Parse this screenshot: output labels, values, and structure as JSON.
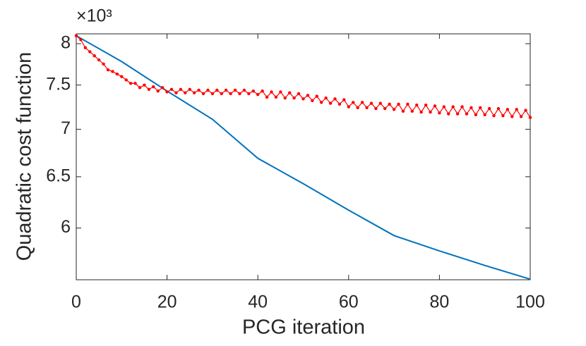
{
  "chart_data": {
    "type": "line",
    "x_label": "PCG iteration",
    "y_label": "Quadratic cost function",
    "y_multiplier": "×10³",
    "y_log_scale": true,
    "xlim": [
      0,
      100
    ],
    "xticks": [
      0,
      20,
      40,
      60,
      80,
      100
    ],
    "ylim": [
      5.535,
      8.124
    ],
    "yticks": [
      6,
      6.5,
      7,
      7.5,
      8
    ],
    "grid": false,
    "series": [
      {
        "color": "#0072bd",
        "marker": false,
        "x": [
          0,
          10,
          20,
          30,
          40,
          50,
          60,
          70,
          80,
          90,
          100
        ],
        "values": [
          8.1,
          7.78,
          7.43,
          7.11,
          6.69,
          6.43,
          6.17,
          5.93,
          5.79,
          5.66,
          5.54
        ]
      },
      {
        "color": "#ff0000",
        "marker": true,
        "x": [
          0,
          1,
          2,
          3,
          4,
          5,
          6,
          7,
          8,
          9,
          10,
          11,
          12,
          13,
          14,
          15,
          16,
          17,
          18,
          19,
          20,
          21,
          22,
          23,
          24,
          25,
          26,
          27,
          28,
          29,
          30,
          31,
          32,
          33,
          34,
          35,
          36,
          37,
          38,
          39,
          40,
          41,
          42,
          43,
          44,
          45,
          46,
          47,
          48,
          49,
          50,
          51,
          52,
          53,
          54,
          55,
          56,
          57,
          58,
          59,
          60,
          61,
          62,
          63,
          64,
          65,
          66,
          67,
          68,
          69,
          70,
          71,
          72,
          73,
          74,
          75,
          76,
          77,
          78,
          79,
          80,
          81,
          82,
          83,
          84,
          85,
          86,
          87,
          88,
          89,
          90,
          91,
          92,
          93,
          94,
          95,
          96,
          97,
          98,
          99,
          100
        ],
        "values": [
          8.1,
          8.05,
          7.95,
          7.9,
          7.85,
          7.8,
          7.75,
          7.68,
          7.66,
          7.63,
          7.6,
          7.56,
          7.52,
          7.52,
          7.47,
          7.5,
          7.45,
          7.48,
          7.43,
          7.47,
          7.42,
          7.45,
          7.41,
          7.45,
          7.41,
          7.45,
          7.41,
          7.44,
          7.4,
          7.44,
          7.4,
          7.44,
          7.4,
          7.44,
          7.4,
          7.44,
          7.4,
          7.44,
          7.4,
          7.43,
          7.39,
          7.43,
          7.36,
          7.42,
          7.36,
          7.42,
          7.35,
          7.41,
          7.35,
          7.4,
          7.34,
          7.38,
          7.32,
          7.37,
          7.3,
          7.35,
          7.29,
          7.34,
          7.28,
          7.33,
          7.25,
          7.3,
          7.24,
          7.3,
          7.24,
          7.29,
          7.23,
          7.29,
          7.23,
          7.28,
          7.22,
          7.28,
          7.2,
          7.28,
          7.2,
          7.27,
          7.19,
          7.27,
          7.19,
          7.26,
          7.18,
          7.25,
          7.17,
          7.25,
          7.17,
          7.25,
          7.17,
          7.24,
          7.16,
          7.24,
          7.16,
          7.23,
          7.15,
          7.23,
          7.15,
          7.22,
          7.14,
          7.22,
          7.14,
          7.21,
          7.13
        ]
      }
    ]
  }
}
